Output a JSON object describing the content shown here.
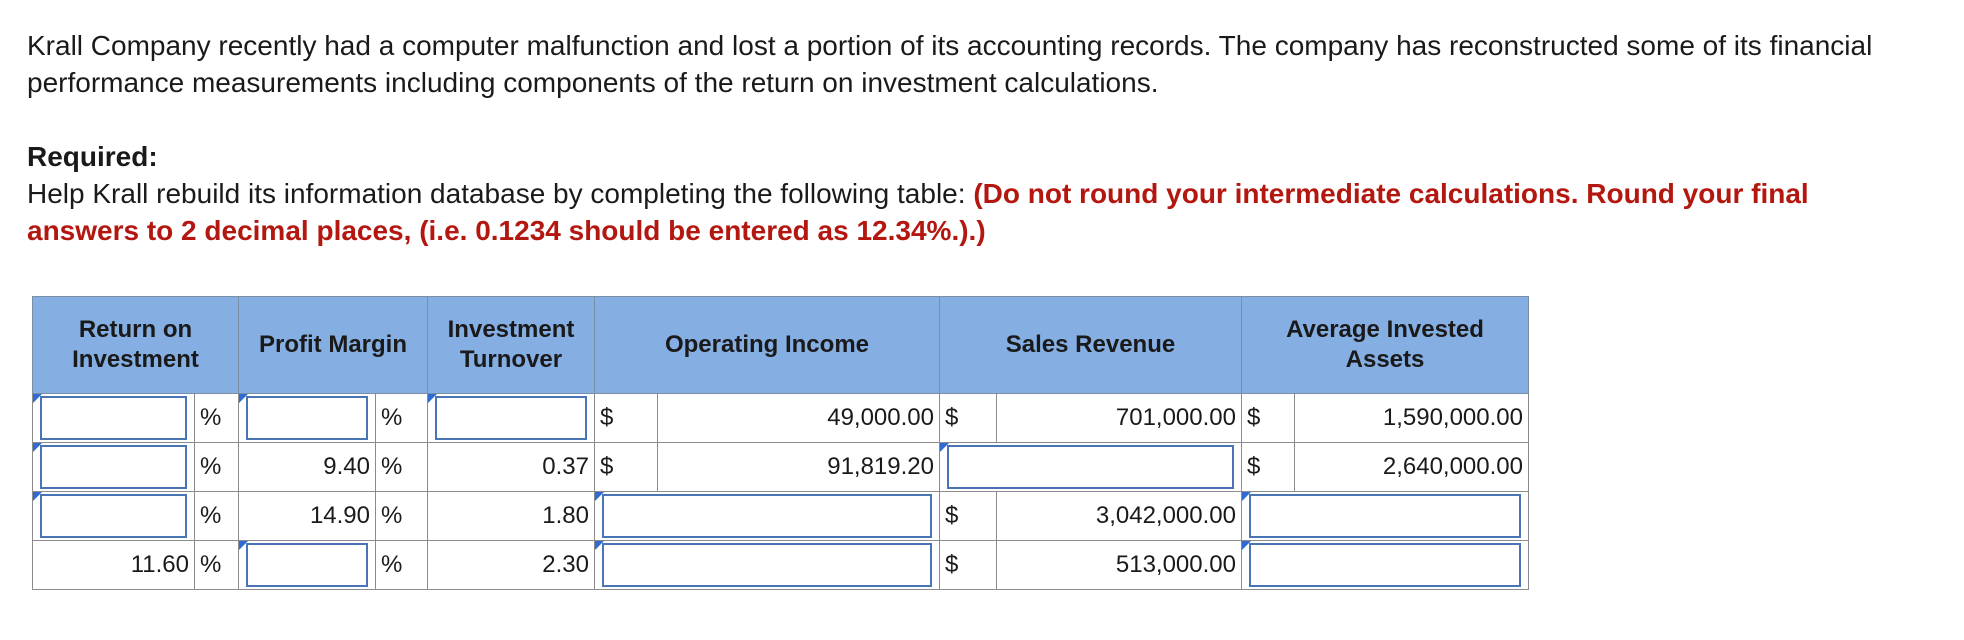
{
  "intro": "Krall Company recently had a computer malfunction and lost a portion of its accounting records. The company has reconstructed some of its financial performance measurements including components of the return on investment calculations.",
  "required_title": "Required:",
  "instruction_plain": "Help Krall rebuild its information database by completing the following table: ",
  "instruction_red": "(Do not round your intermediate calculations. Round your final answers to 2 decimal places, (i.e. 0.1234 should be entered as 12.34%.).)",
  "table": {
    "headers": [
      "Return on Investment",
      "Profit Margin",
      "Investment Turnover",
      "Operating Income",
      "Sales Revenue",
      "Average Invested Assets"
    ],
    "percent": "%",
    "dollar": "$",
    "rows": [
      {
        "roi": "",
        "profit_margin": "",
        "turnover": "",
        "operating_income": "49,000.00",
        "sales_revenue": "701,000.00",
        "avg_assets": "1,590,000.00"
      },
      {
        "roi": "",
        "profit_margin": "9.40",
        "turnover": "0.37",
        "operating_income": "91,819.20",
        "sales_revenue": "",
        "avg_assets": "2,640,000.00"
      },
      {
        "roi": "",
        "profit_margin": "14.90",
        "turnover": "1.80",
        "operating_income": "",
        "sales_revenue": "3,042,000.00",
        "avg_assets": ""
      },
      {
        "roi": "11.60",
        "profit_margin": "",
        "turnover": "2.30",
        "operating_income": "",
        "sales_revenue": "513,000.00",
        "avg_assets": ""
      }
    ]
  }
}
